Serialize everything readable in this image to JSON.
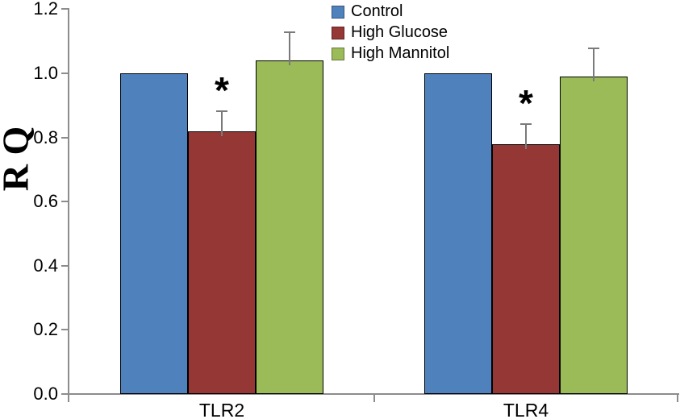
{
  "figure": {
    "background_color": "#FFFFFF",
    "axis_color": "#8C8C8C",
    "text_color": "#000000",
    "error_bar_color": "#7A7A7A",
    "bar_border_color": "#000000"
  },
  "chart_data": {
    "type": "bar",
    "title": "",
    "xlabel": "",
    "ylabel": "R Q",
    "categories": [
      "TLR2",
      "TLR4"
    ],
    "series": [
      {
        "name": "Control",
        "color": "#4F81BD",
        "values": [
          1.0,
          1.0
        ],
        "errors": [
          0,
          0
        ]
      },
      {
        "name": "High Glucose",
        "color": "#953735",
        "values": [
          0.82,
          0.78
        ],
        "errors": [
          0.065,
          0.065
        ]
      },
      {
        "name": "High Mannitol",
        "color": "#9BBB59",
        "values": [
          1.04,
          0.99
        ],
        "errors": [
          0.09,
          0.09
        ]
      }
    ],
    "ylim": [
      0.0,
      1.2
    ],
    "yticks": [
      0.0,
      0.2,
      0.4,
      0.6,
      0.8,
      1.0,
      1.2
    ],
    "ytick_decimals": 1,
    "grid": false,
    "legend_position": "top-center",
    "annotations": [
      {
        "text": "*",
        "category": "TLR2",
        "series": "High Glucose"
      },
      {
        "text": "*",
        "category": "TLR4",
        "series": "High Glucose"
      }
    ]
  }
}
